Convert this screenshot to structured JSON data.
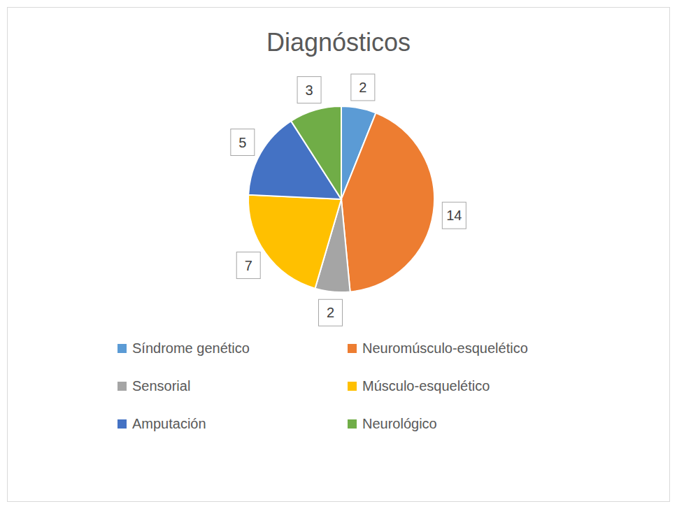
{
  "chart_data": {
    "type": "pie",
    "title": "Diagnósticos",
    "categories": [
      "Síndrome genético",
      "Neuromúsculo-esquelético",
      "Sensorial",
      "Músculo-esquelético",
      "Amputación",
      "Neurológico"
    ],
    "values": [
      2,
      14,
      2,
      7,
      5,
      3
    ],
    "colors": [
      "#5b9bd5",
      "#ed7d31",
      "#a5a5a5",
      "#ffc000",
      "#4472c4",
      "#70ad47"
    ],
    "data_labels": true,
    "legend": "bottom"
  }
}
